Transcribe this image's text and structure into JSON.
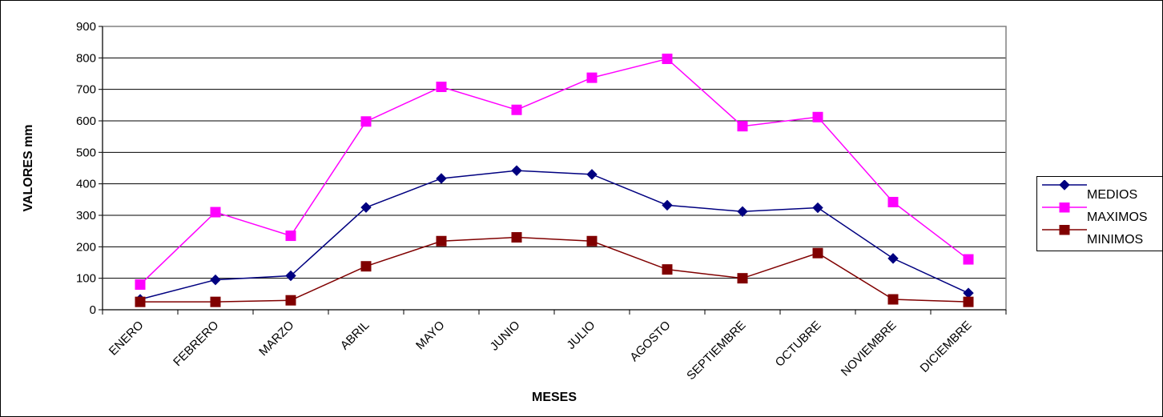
{
  "chart_data": {
    "type": "line",
    "categories": [
      "ENERO",
      "FEBRERO",
      "MARZO",
      "ABRIL",
      "MAYO",
      "JUNIO",
      "JULIO",
      "AGOSTO",
      "SEPTIEMBRE",
      "OCTUBRE",
      "NOVIEMBRE",
      "DICIEMBRE"
    ],
    "series": [
      {
        "name": "MEDIOS",
        "values": [
          33,
          95,
          108,
          325,
          417,
          442,
          430,
          332,
          312,
          324,
          163,
          53
        ],
        "color": "#000080",
        "marker": "diamond"
      },
      {
        "name": "MAXIMOS",
        "values": [
          80,
          310,
          235,
          598,
          708,
          635,
          737,
          797,
          583,
          612,
          342,
          160
        ],
        "color": "#ff00ff",
        "marker": "square"
      },
      {
        "name": "MINIMOS",
        "values": [
          25,
          25,
          30,
          138,
          218,
          230,
          218,
          128,
          100,
          180,
          33,
          25
        ],
        "color": "#800000",
        "marker": "square"
      }
    ],
    "title": "",
    "xlabel": "MESES",
    "ylabel": "VALORES mm",
    "ylim": [
      0,
      900
    ],
    "yticks": [
      0,
      100,
      200,
      300,
      400,
      500,
      600,
      700,
      800,
      900
    ],
    "grid": true,
    "legend": "right"
  }
}
